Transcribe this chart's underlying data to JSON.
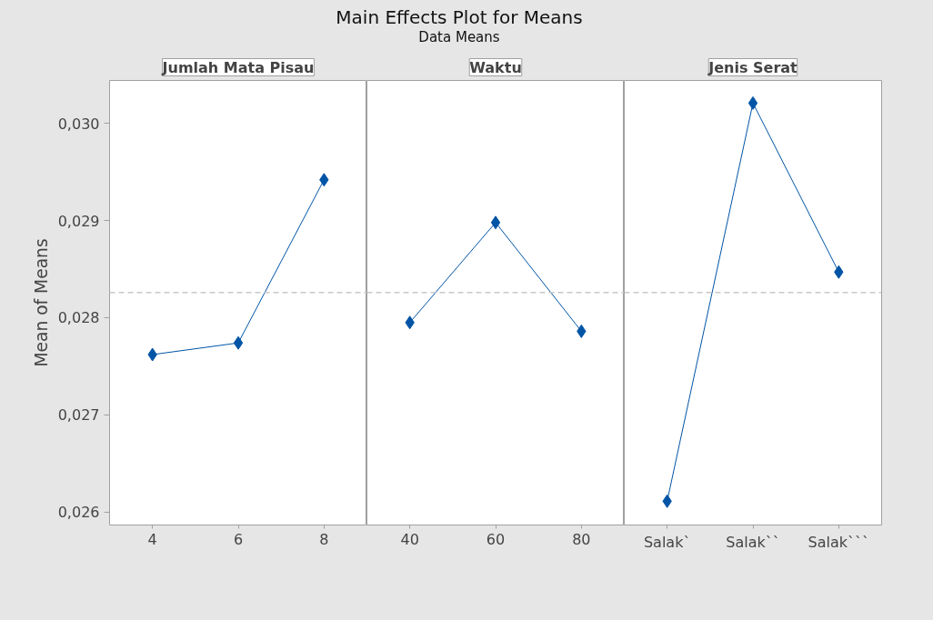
{
  "chart_data": [
    {
      "type": "other",
      "title": "Main Effects Plot for Means",
      "subtitle": "Data Means"
    },
    {
      "type": "line",
      "xlabel": "Jumlah Mata Pisau",
      "ylabel": "Mean of Means",
      "categories": [
        "4",
        "6",
        "8"
      ],
      "series": [
        {
          "color": "#0054a6",
          "values": [
            0.02762,
            0.02774,
            0.02942
          ]
        }
      ],
      "ylim": [
        0.025865,
        0.030443
      ],
      "yticks": [
        {
          "value": 0.026,
          "label": "0,026"
        },
        {
          "value": 0.027,
          "label": "0,027"
        },
        {
          "value": 0.028,
          "label": "0,028"
        },
        {
          "value": 0.029,
          "label": "0,029"
        },
        {
          "value": 0.03,
          "label": "0,030"
        }
      ],
      "ref_lines": [
        {
          "axis": "y",
          "value": 0.02826,
          "color": "#c8c8c8",
          "line_style": "dashed"
        }
      ],
      "marker": "diamond",
      "grid": false
    },
    {
      "type": "line",
      "xlabel": "Waktu",
      "categories": [
        "40",
        "60",
        "80"
      ],
      "series": [
        {
          "color": "#0054a6",
          "values": [
            0.02795,
            0.02898,
            0.02786
          ]
        }
      ],
      "ylim": [
        0.025865,
        0.030443
      ],
      "tick_labels": "x",
      "ref_lines": [
        {
          "axis": "y",
          "value": 0.02826,
          "color": "#c8c8c8",
          "line_style": "dashed"
        }
      ],
      "marker": "diamond",
      "grid": false
    },
    {
      "type": "line",
      "xlabel": "Jenis Serat",
      "categories": [
        "Salak`",
        "Salak``",
        "Salak```"
      ],
      "series": [
        {
          "color": "#0054a6",
          "values": [
            0.02611,
            0.03021,
            0.02847
          ]
        }
      ],
      "ylim": [
        0.025865,
        0.030443
      ],
      "tick_labels": "x",
      "ref_lines": [
        {
          "axis": "y",
          "value": 0.02826,
          "color": "#c8c8c8",
          "line_style": "dashed"
        }
      ],
      "marker": "diamond",
      "grid": false
    }
  ]
}
